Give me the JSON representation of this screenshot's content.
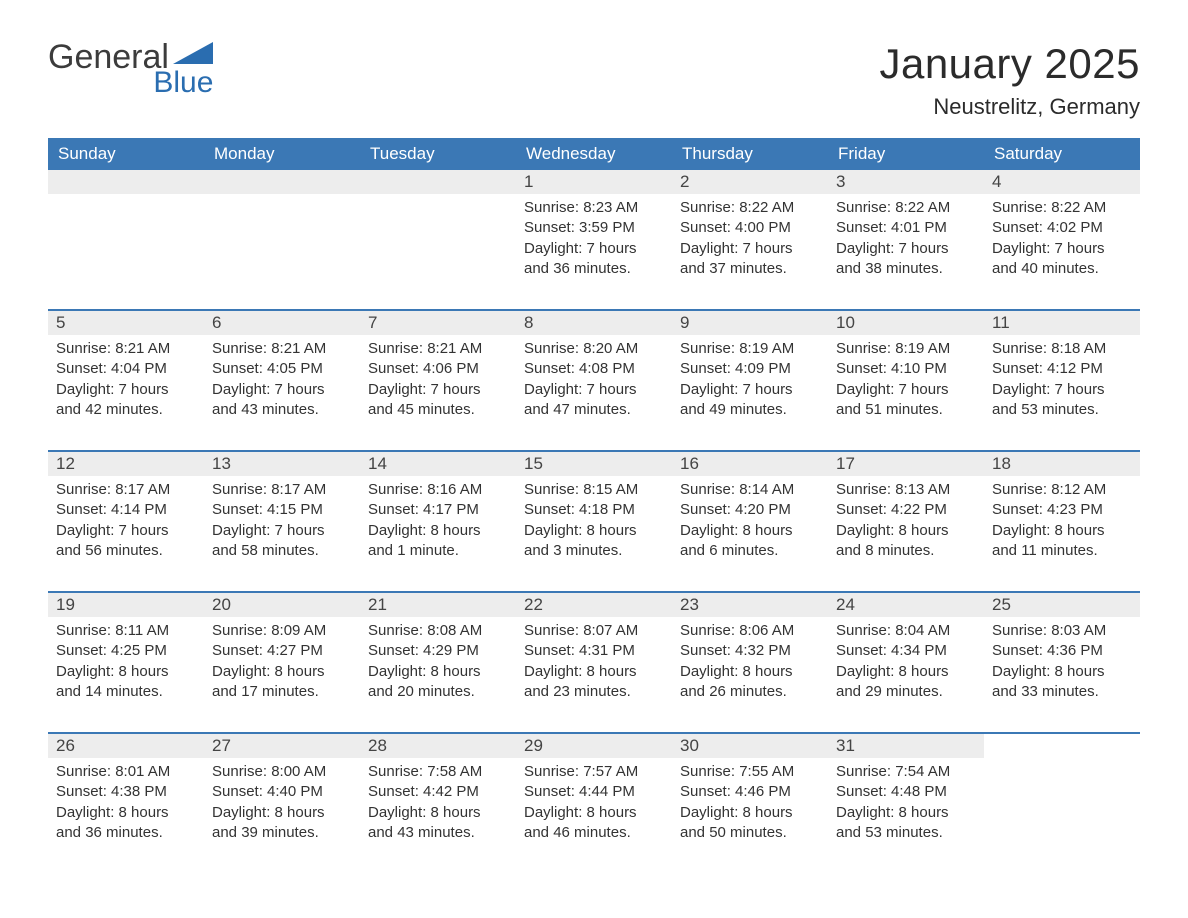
{
  "logo": {
    "word1": "General",
    "word2": "Blue",
    "tri_color": "#2a6db0"
  },
  "title": "January 2025",
  "location": "Neustrelitz, Germany",
  "colors": {
    "header_bg": "#3b78b5",
    "header_text": "#ffffff",
    "daynum_bg": "#ededed",
    "body_text": "#333333",
    "rule": "#3b78b5",
    "page_bg": "#ffffff"
  },
  "weekdays": [
    "Sunday",
    "Monday",
    "Tuesday",
    "Wednesday",
    "Thursday",
    "Friday",
    "Saturday"
  ],
  "weeks": [
    [
      null,
      null,
      null,
      {
        "n": "1",
        "sunrise": "Sunrise: 8:23 AM",
        "sunset": "Sunset: 3:59 PM",
        "d1": "Daylight: 7 hours",
        "d2": "and 36 minutes."
      },
      {
        "n": "2",
        "sunrise": "Sunrise: 8:22 AM",
        "sunset": "Sunset: 4:00 PM",
        "d1": "Daylight: 7 hours",
        "d2": "and 37 minutes."
      },
      {
        "n": "3",
        "sunrise": "Sunrise: 8:22 AM",
        "sunset": "Sunset: 4:01 PM",
        "d1": "Daylight: 7 hours",
        "d2": "and 38 minutes."
      },
      {
        "n": "4",
        "sunrise": "Sunrise: 8:22 AM",
        "sunset": "Sunset: 4:02 PM",
        "d1": "Daylight: 7 hours",
        "d2": "and 40 minutes."
      }
    ],
    [
      {
        "n": "5",
        "sunrise": "Sunrise: 8:21 AM",
        "sunset": "Sunset: 4:04 PM",
        "d1": "Daylight: 7 hours",
        "d2": "and 42 minutes."
      },
      {
        "n": "6",
        "sunrise": "Sunrise: 8:21 AM",
        "sunset": "Sunset: 4:05 PM",
        "d1": "Daylight: 7 hours",
        "d2": "and 43 minutes."
      },
      {
        "n": "7",
        "sunrise": "Sunrise: 8:21 AM",
        "sunset": "Sunset: 4:06 PM",
        "d1": "Daylight: 7 hours",
        "d2": "and 45 minutes."
      },
      {
        "n": "8",
        "sunrise": "Sunrise: 8:20 AM",
        "sunset": "Sunset: 4:08 PM",
        "d1": "Daylight: 7 hours",
        "d2": "and 47 minutes."
      },
      {
        "n": "9",
        "sunrise": "Sunrise: 8:19 AM",
        "sunset": "Sunset: 4:09 PM",
        "d1": "Daylight: 7 hours",
        "d2": "and 49 minutes."
      },
      {
        "n": "10",
        "sunrise": "Sunrise: 8:19 AM",
        "sunset": "Sunset: 4:10 PM",
        "d1": "Daylight: 7 hours",
        "d2": "and 51 minutes."
      },
      {
        "n": "11",
        "sunrise": "Sunrise: 8:18 AM",
        "sunset": "Sunset: 4:12 PM",
        "d1": "Daylight: 7 hours",
        "d2": "and 53 minutes."
      }
    ],
    [
      {
        "n": "12",
        "sunrise": "Sunrise: 8:17 AM",
        "sunset": "Sunset: 4:14 PM",
        "d1": "Daylight: 7 hours",
        "d2": "and 56 minutes."
      },
      {
        "n": "13",
        "sunrise": "Sunrise: 8:17 AM",
        "sunset": "Sunset: 4:15 PM",
        "d1": "Daylight: 7 hours",
        "d2": "and 58 minutes."
      },
      {
        "n": "14",
        "sunrise": "Sunrise: 8:16 AM",
        "sunset": "Sunset: 4:17 PM",
        "d1": "Daylight: 8 hours",
        "d2": "and 1 minute."
      },
      {
        "n": "15",
        "sunrise": "Sunrise: 8:15 AM",
        "sunset": "Sunset: 4:18 PM",
        "d1": "Daylight: 8 hours",
        "d2": "and 3 minutes."
      },
      {
        "n": "16",
        "sunrise": "Sunrise: 8:14 AM",
        "sunset": "Sunset: 4:20 PM",
        "d1": "Daylight: 8 hours",
        "d2": "and 6 minutes."
      },
      {
        "n": "17",
        "sunrise": "Sunrise: 8:13 AM",
        "sunset": "Sunset: 4:22 PM",
        "d1": "Daylight: 8 hours",
        "d2": "and 8 minutes."
      },
      {
        "n": "18",
        "sunrise": "Sunrise: 8:12 AM",
        "sunset": "Sunset: 4:23 PM",
        "d1": "Daylight: 8 hours",
        "d2": "and 11 minutes."
      }
    ],
    [
      {
        "n": "19",
        "sunrise": "Sunrise: 8:11 AM",
        "sunset": "Sunset: 4:25 PM",
        "d1": "Daylight: 8 hours",
        "d2": "and 14 minutes."
      },
      {
        "n": "20",
        "sunrise": "Sunrise: 8:09 AM",
        "sunset": "Sunset: 4:27 PM",
        "d1": "Daylight: 8 hours",
        "d2": "and 17 minutes."
      },
      {
        "n": "21",
        "sunrise": "Sunrise: 8:08 AM",
        "sunset": "Sunset: 4:29 PM",
        "d1": "Daylight: 8 hours",
        "d2": "and 20 minutes."
      },
      {
        "n": "22",
        "sunrise": "Sunrise: 8:07 AM",
        "sunset": "Sunset: 4:31 PM",
        "d1": "Daylight: 8 hours",
        "d2": "and 23 minutes."
      },
      {
        "n": "23",
        "sunrise": "Sunrise: 8:06 AM",
        "sunset": "Sunset: 4:32 PM",
        "d1": "Daylight: 8 hours",
        "d2": "and 26 minutes."
      },
      {
        "n": "24",
        "sunrise": "Sunrise: 8:04 AM",
        "sunset": "Sunset: 4:34 PM",
        "d1": "Daylight: 8 hours",
        "d2": "and 29 minutes."
      },
      {
        "n": "25",
        "sunrise": "Sunrise: 8:03 AM",
        "sunset": "Sunset: 4:36 PM",
        "d1": "Daylight: 8 hours",
        "d2": "and 33 minutes."
      }
    ],
    [
      {
        "n": "26",
        "sunrise": "Sunrise: 8:01 AM",
        "sunset": "Sunset: 4:38 PM",
        "d1": "Daylight: 8 hours",
        "d2": "and 36 minutes."
      },
      {
        "n": "27",
        "sunrise": "Sunrise: 8:00 AM",
        "sunset": "Sunset: 4:40 PM",
        "d1": "Daylight: 8 hours",
        "d2": "and 39 minutes."
      },
      {
        "n": "28",
        "sunrise": "Sunrise: 7:58 AM",
        "sunset": "Sunset: 4:42 PM",
        "d1": "Daylight: 8 hours",
        "d2": "and 43 minutes."
      },
      {
        "n": "29",
        "sunrise": "Sunrise: 7:57 AM",
        "sunset": "Sunset: 4:44 PM",
        "d1": "Daylight: 8 hours",
        "d2": "and 46 minutes."
      },
      {
        "n": "30",
        "sunrise": "Sunrise: 7:55 AM",
        "sunset": "Sunset: 4:46 PM",
        "d1": "Daylight: 8 hours",
        "d2": "and 50 minutes."
      },
      {
        "n": "31",
        "sunrise": "Sunrise: 7:54 AM",
        "sunset": "Sunset: 4:48 PM",
        "d1": "Daylight: 8 hours",
        "d2": "and 53 minutes."
      },
      null
    ]
  ]
}
